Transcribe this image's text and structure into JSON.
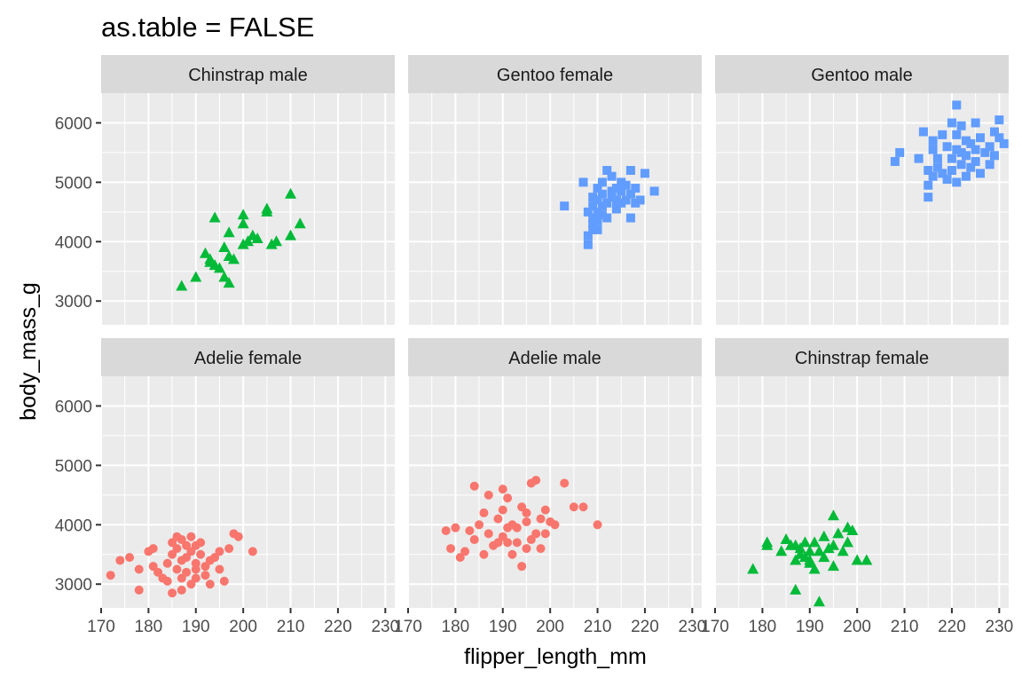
{
  "chart_data": {
    "type": "scatter",
    "title": "as.table = FALSE",
    "xlabel": "flipper_length_mm",
    "ylabel": "body_mass_g",
    "xlim": [
      170,
      232
    ],
    "ylim": [
      2600,
      6500
    ],
    "x_ticks": [
      170,
      180,
      190,
      200,
      210,
      220,
      230
    ],
    "y_ticks": [
      3000,
      4000,
      5000,
      6000
    ],
    "grid": true,
    "legend": "none",
    "colors": {
      "Adelie": "#F8766D",
      "Chinstrap": "#00BA38",
      "Gentoo": "#619CFF"
    },
    "shapes": {
      "Adelie": "circle",
      "Chinstrap": "triangle",
      "Gentoo": "square"
    },
    "panels": [
      {
        "label": "Chinstrap male",
        "species": "Chinstrap",
        "x": [
          187,
          190,
          192,
          193,
          193,
          194,
          194,
          195,
          196,
          196,
          197,
          197,
          197,
          198,
          200,
          200,
          200,
          201,
          202,
          203,
          205,
          205,
          206,
          207,
          210,
          210,
          212
        ],
        "y": [
          3250,
          3400,
          3800,
          3700,
          3650,
          4400,
          3600,
          3550,
          3900,
          3400,
          4150,
          3750,
          3300,
          3700,
          4450,
          4300,
          3950,
          4000,
          4100,
          4050,
          4500,
          4550,
          3950,
          4000,
          4800,
          4100,
          4300
        ]
      },
      {
        "label": "Gentoo female",
        "species": "Gentoo",
        "x": [
          203,
          207,
          208,
          208,
          208,
          209,
          209,
          209,
          209,
          209,
          210,
          210,
          210,
          210,
          210,
          211,
          211,
          211,
          211,
          212,
          212,
          212,
          213,
          213,
          213,
          214,
          214,
          214,
          215,
          215,
          215,
          216,
          216,
          217,
          217,
          217,
          218,
          218,
          219,
          220,
          222
        ],
        "y": [
          4600,
          5000,
          4500,
          4100,
          3950,
          4400,
          4200,
          4750,
          4300,
          4600,
          4350,
          4700,
          4500,
          4200,
          4900,
          4450,
          4800,
          4600,
          5000,
          4650,
          5200,
          4400,
          4750,
          4850,
          5100,
          4900,
          4700,
          4550,
          5000,
          4850,
          4650,
          4700,
          4950,
          4400,
          5200,
          4800,
          4650,
          4900,
          4700,
          5150,
          4850
        ]
      },
      {
        "label": "Gentoo male",
        "species": "Gentoo",
        "x": [
          208,
          209,
          213,
          214,
          215,
          215,
          215,
          216,
          216,
          216,
          217,
          217,
          218,
          218,
          219,
          219,
          220,
          220,
          220,
          221,
          221,
          221,
          221,
          222,
          222,
          222,
          223,
          223,
          223,
          224,
          224,
          225,
          225,
          225,
          226,
          226,
          227,
          228,
          228,
          229,
          229,
          230,
          230,
          231
        ],
        "y": [
          5350,
          5500,
          5400,
          5850,
          5200,
          4950,
          4750,
          5100,
          5550,
          5700,
          5400,
          5250,
          5150,
          5800,
          5600,
          5050,
          5400,
          6000,
          5200,
          6300,
          5550,
          5000,
          5800,
          5950,
          5300,
          5500,
          5100,
          5700,
          5450,
          5650,
          5250,
          5550,
          5350,
          6000,
          5150,
          5750,
          5500,
          5600,
          5300,
          5850,
          5450,
          5750,
          6050,
          5650
        ]
      },
      {
        "label": "Adelie female",
        "species": "Adelie",
        "x": [
          172,
          174,
          176,
          178,
          178,
          180,
          181,
          181,
          182,
          183,
          184,
          184,
          185,
          185,
          185,
          186,
          186,
          186,
          187,
          187,
          187,
          187,
          188,
          188,
          188,
          189,
          189,
          189,
          190,
          190,
          190,
          190,
          191,
          191,
          192,
          192,
          193,
          193,
          194,
          195,
          195,
          196,
          197,
          198,
          199,
          202
        ],
        "y": [
          3150,
          3400,
          3450,
          2900,
          3250,
          3550,
          3600,
          3300,
          3200,
          3100,
          3350,
          3050,
          3700,
          3500,
          2850,
          3600,
          3800,
          3250,
          3400,
          3750,
          2900,
          3100,
          3650,
          3450,
          3200,
          3800,
          3550,
          3000,
          3350,
          3650,
          3100,
          3250,
          3500,
          3700,
          3150,
          3300,
          3000,
          3400,
          3450,
          3550,
          3250,
          3050,
          3600,
          3850,
          3800,
          3550
        ]
      },
      {
        "label": "Adelie male",
        "species": "Adelie",
        "x": [
          178,
          179,
          180,
          181,
          182,
          183,
          184,
          184,
          185,
          186,
          186,
          187,
          187,
          188,
          189,
          189,
          190,
          190,
          190,
          191,
          191,
          191,
          192,
          192,
          193,
          193,
          194,
          194,
          195,
          195,
          195,
          196,
          196,
          197,
          197,
          198,
          198,
          199,
          199,
          200,
          201,
          203,
          205,
          207,
          210
        ],
        "y": [
          3900,
          3600,
          3950,
          3450,
          3550,
          3900,
          4650,
          3750,
          4000,
          3500,
          4200,
          4500,
          3850,
          3650,
          3700,
          4100,
          4600,
          3800,
          4250,
          3950,
          3700,
          4450,
          3500,
          4000,
          3700,
          3950,
          3300,
          4300,
          3600,
          4050,
          4200,
          4700,
          3750,
          3850,
          4750,
          3600,
          4100,
          3850,
          4250,
          4050,
          4000,
          4700,
          4300,
          4300,
          4000
        ]
      },
      {
        "label": "Chinstrap female",
        "species": "Chinstrap",
        "x": [
          178,
          181,
          181,
          184,
          185,
          186,
          187,
          187,
          187,
          188,
          188,
          189,
          189,
          190,
          190,
          190,
          191,
          191,
          192,
          192,
          193,
          193,
          194,
          195,
          195,
          195,
          196,
          197,
          198,
          198,
          199,
          200,
          202
        ],
        "y": [
          3250,
          3650,
          3700,
          3550,
          3750,
          3650,
          2900,
          3400,
          3650,
          3500,
          3600,
          3450,
          3700,
          3550,
          3400,
          3350,
          3250,
          3700,
          2700,
          3550,
          3800,
          3450,
          3600,
          3300,
          4150,
          3650,
          3850,
          3550,
          3950,
          3700,
          3900,
          3400,
          3400
        ]
      }
    ]
  }
}
